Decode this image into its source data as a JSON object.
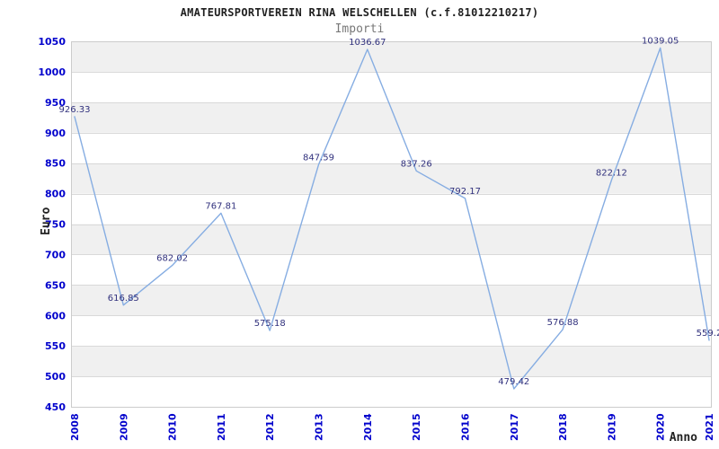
{
  "chart_data": {
    "type": "line",
    "title": "AMATEURSPORTVEREIN RINA WELSCHELLEN (c.f.81012210217)",
    "subtitle": "Importi",
    "xlabel": "Anno",
    "ylabel": "Euro",
    "categories": [
      "2008",
      "2009",
      "2010",
      "2011",
      "2012",
      "2013",
      "2014",
      "2015",
      "2016",
      "2017",
      "2018",
      "2019",
      "2020",
      "2021"
    ],
    "series": [
      {
        "name": "Importi",
        "values": [
          926.33,
          616.85,
          682.02,
          767.81,
          575.18,
          847.59,
          1036.67,
          837.26,
          792.17,
          479.42,
          576.88,
          822.12,
          1039.05,
          559.2
        ]
      }
    ],
    "point_labels": [
      "926.33",
      "616.85",
      "682.02",
      "767.81",
      "575.18",
      "847.59",
      "1036.67",
      "837.26",
      "792.17",
      "479.42",
      "576.88",
      "822.12",
      "1039.05",
      "559.2"
    ],
    "ylim": [
      450,
      1050
    ],
    "ytick_step": 50,
    "ytick_labels": [
      "450",
      "500",
      "550",
      "600",
      "650",
      "700",
      "750",
      "800",
      "850",
      "900",
      "950",
      "1000",
      "1050"
    ],
    "grid": "horizontal-bands",
    "legend": "none",
    "colors": {
      "line": "#86ade2",
      "tick_label": "#0000cc",
      "value_label": "#31317d",
      "band": "#f0f0f0",
      "gridline": "#d9d9d9",
      "border": "#cccccc",
      "title": "#1f1f1f",
      "subtitle": "#787878",
      "axis_title": "#222222"
    }
  }
}
